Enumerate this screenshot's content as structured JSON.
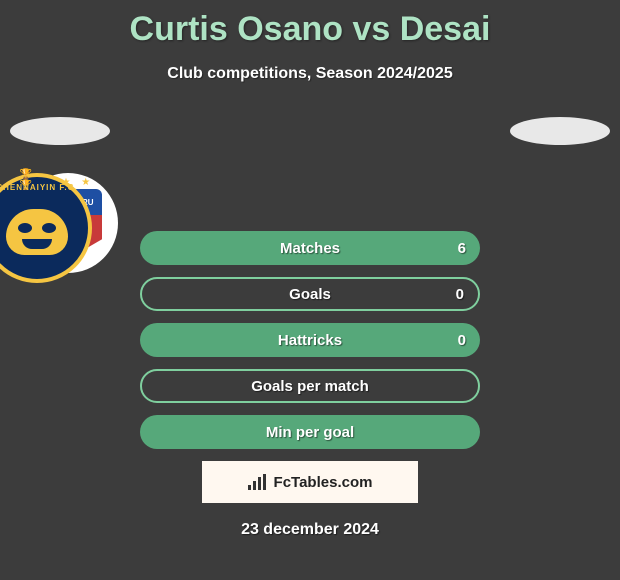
{
  "header": {
    "title": "Curtis Osano vs Desai",
    "title_color": "#aee3c4",
    "subtitle": "Club competitions, Season 2024/2025"
  },
  "background_color": "#3c3c3c",
  "ellipse_color": "#e8e8e8",
  "clubs": {
    "left": {
      "name": "Bengaluru FC",
      "shield_top_color": "#1e4fa3",
      "shield_bottom_color": "#c83a3a",
      "star_color": "#f5c542",
      "label": "BENGALURU"
    },
    "right": {
      "name": "Chennaiyin FC",
      "ring_color": "#f5c542",
      "bg_color": "#0b2a5c",
      "label": "CHENNAIYIN F.C."
    }
  },
  "stats": {
    "row_green": "#56a87a",
    "row_border_color": "#7fcf9e",
    "rows": [
      {
        "label": "Matches",
        "left": "",
        "right": "6",
        "filled": true
      },
      {
        "label": "Goals",
        "left": "",
        "right": "0",
        "filled": false
      },
      {
        "label": "Hattricks",
        "left": "",
        "right": "0",
        "filled": true
      },
      {
        "label": "Goals per match",
        "left": "",
        "right": "",
        "filled": false
      },
      {
        "label": "Min per goal",
        "left": "",
        "right": "",
        "filled": true
      }
    ]
  },
  "branding": {
    "site": "FcTables.com",
    "box_bg": "#fff8f0"
  },
  "date": "23 december 2024"
}
